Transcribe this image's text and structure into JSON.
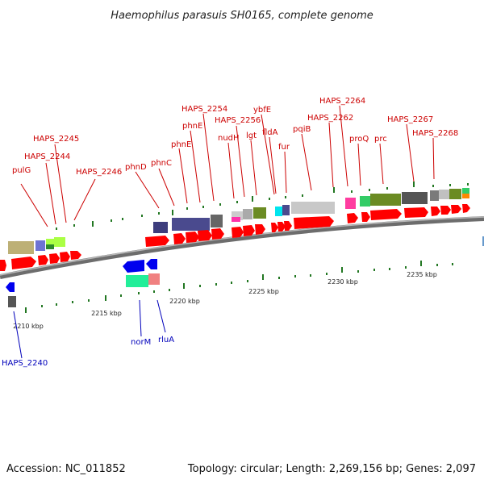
{
  "title": "Haemophilus parasuis SH0165, complete genome",
  "footer": {
    "accession": "Accession: NC_011852",
    "topology": "Topology: circular; Length: 2,269,156 bp; Genes: 2,097"
  },
  "scale_labels": [
    "2210 kbp",
    "2215 kbp",
    "2220 kbp",
    "2225 kbp",
    "2230 kbp",
    "2235 kbp"
  ],
  "forward_gene_labels": [
    "pulG",
    "HAPS_2244",
    "HAPS_2245",
    "HAPS_2246",
    "phnD",
    "phnC",
    "phnE",
    "phnE",
    "HAPS_2254",
    "nudH",
    "HAPS_2256",
    "lgt",
    "ybfE",
    "fldA",
    "fur",
    "pqiB",
    "HAPS_2262",
    "HAPS_2264",
    "proQ",
    "prc",
    "HAPS_2267",
    "HAPS_2268"
  ],
  "reverse_gene_labels": [
    "HAPS_2240",
    "norM",
    "rluA"
  ],
  "colors": {
    "forward_label": "#cc0000",
    "reverse_label": "#0000bb",
    "forward_arrow": "#ff0000",
    "reverse_arrow": "#0000ee",
    "backbone": "#888888",
    "tick": "#227722"
  }
}
